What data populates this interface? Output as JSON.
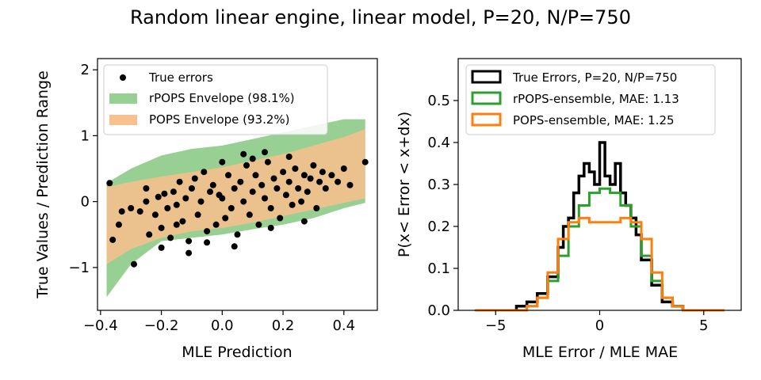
{
  "figure": {
    "suptitle": "Random linear engine, linear model, P=20, N/P=750"
  },
  "chart_data": [
    {
      "type": "scatter",
      "xlabel": "MLE Prediction",
      "ylabel": "True Values / Prediction Range",
      "xlim": [
        -0.41,
        0.51
      ],
      "ylim": [
        -1.65,
        2.17
      ],
      "xticks": [
        -0.4,
        -0.2,
        0.0,
        0.2,
        0.4
      ],
      "xtick_labels": [
        "−0.4",
        "−0.2",
        "0.0",
        "0.2",
        "0.4"
      ],
      "yticks": [
        -1,
        0,
        1,
        2
      ],
      "ytick_labels": [
        "−1",
        "0",
        "1",
        "2"
      ],
      "grid": false,
      "legend_position": "upper-left",
      "legend": [
        {
          "label": "True errors",
          "kind": "marker",
          "color": "#000000"
        },
        {
          "label": "rPOPS Envelope (98.1%)",
          "kind": "patch",
          "color": "#98d093"
        },
        {
          "label": "POPS Envelope (93.2%)",
          "kind": "patch",
          "color": "#f9bf8c"
        }
      ],
      "envelopes": [
        {
          "name": "rPOPS Envelope (98.1%)",
          "color": "#98d093",
          "x": [
            -0.38,
            -0.3,
            -0.2,
            -0.1,
            0.0,
            0.1,
            0.2,
            0.3,
            0.4,
            0.47
          ],
          "upper": [
            0.28,
            0.5,
            0.7,
            0.8,
            0.85,
            0.95,
            1.05,
            1.15,
            1.25,
            1.25
          ],
          "lower": [
            -1.45,
            -0.95,
            -0.6,
            -0.55,
            -0.5,
            -0.42,
            -0.35,
            -0.25,
            -0.1,
            -0.02
          ]
        },
        {
          "name": "POPS Envelope (93.2%)",
          "color": "#f9bf8c",
          "x": [
            -0.38,
            -0.3,
            -0.2,
            -0.1,
            0.0,
            0.1,
            0.2,
            0.3,
            0.4,
            0.47
          ],
          "upper": [
            0.22,
            0.3,
            0.38,
            0.45,
            0.52,
            0.62,
            0.72,
            0.85,
            0.98,
            1.1
          ],
          "lower": [
            -0.95,
            -0.72,
            -0.55,
            -0.45,
            -0.4,
            -0.32,
            -0.22,
            -0.12,
            -0.02,
            0.05
          ]
        }
      ],
      "points": [
        [
          -0.37,
          0.28
        ],
        [
          -0.36,
          -0.58
        ],
        [
          -0.34,
          -0.35
        ],
        [
          -0.33,
          -0.15
        ],
        [
          -0.3,
          -0.1
        ],
        [
          -0.29,
          -0.95
        ],
        [
          -0.27,
          -0.15
        ],
        [
          -0.25,
          0.0
        ],
        [
          -0.24,
          -0.5
        ],
        [
          -0.22,
          -0.2
        ],
        [
          -0.21,
          0.07
        ],
        [
          -0.2,
          -0.4
        ],
        [
          -0.19,
          0.12
        ],
        [
          -0.18,
          -0.1
        ],
        [
          -0.17,
          -0.55
        ],
        [
          -0.16,
          0.15
        ],
        [
          -0.15,
          -0.05
        ],
        [
          -0.14,
          0.3
        ],
        [
          -0.13,
          -0.3
        ],
        [
          -0.12,
          0.05
        ],
        [
          -0.11,
          -0.6
        ],
        [
          -0.1,
          0.2
        ],
        [
          -0.09,
          0.35
        ],
        [
          -0.08,
          -0.2
        ],
        [
          -0.07,
          0.0
        ],
        [
          -0.06,
          0.45
        ],
        [
          -0.05,
          -0.45
        ],
        [
          -0.04,
          0.15
        ],
        [
          -0.03,
          0.25
        ],
        [
          -0.02,
          -0.35
        ],
        [
          -0.01,
          0.1
        ],
        [
          0.0,
          0.05
        ],
        [
          0.01,
          -0.25
        ],
        [
          0.02,
          0.4
        ],
        [
          0.03,
          -0.1
        ],
        [
          0.04,
          0.2
        ],
        [
          0.05,
          -0.5
        ],
        [
          0.06,
          0.3
        ],
        [
          0.07,
          0.0
        ],
        [
          0.08,
          0.55
        ],
        [
          0.09,
          -0.2
        ],
        [
          0.1,
          0.15
        ],
        [
          0.11,
          0.4
        ],
        [
          0.12,
          -0.35
        ],
        [
          0.13,
          0.25
        ],
        [
          0.14,
          0.05
        ],
        [
          0.15,
          0.6
        ],
        [
          0.16,
          -0.1
        ],
        [
          0.17,
          0.35
        ],
        [
          0.18,
          0.2
        ],
        [
          0.19,
          -0.25
        ],
        [
          0.2,
          0.45
        ],
        [
          0.21,
          0.1
        ],
        [
          0.22,
          0.3
        ],
        [
          0.23,
          -0.05
        ],
        [
          0.24,
          0.5
        ],
        [
          0.25,
          0.2
        ],
        [
          0.26,
          0.0
        ],
        [
          0.27,
          0.4
        ],
        [
          0.28,
          0.15
        ],
        [
          0.29,
          0.35
        ],
        [
          0.3,
          0.55
        ],
        [
          0.31,
          -0.1
        ],
        [
          0.32,
          0.3
        ],
        [
          0.33,
          0.45
        ],
        [
          0.34,
          0.2
        ],
        [
          0.36,
          0.4
        ],
        [
          0.38,
          0.3
        ],
        [
          0.4,
          0.5
        ],
        [
          0.42,
          0.25
        ],
        [
          0.47,
          0.6
        ],
        [
          -0.15,
          -0.35
        ],
        [
          -0.05,
          -0.62
        ],
        [
          0.04,
          -0.68
        ],
        [
          -0.11,
          -0.78
        ],
        [
          0.1,
          0.65
        ],
        [
          0.07,
          0.72
        ],
        [
          0.14,
          0.75
        ],
        [
          0.22,
          0.68
        ],
        [
          -0.2,
          -0.7
        ],
        [
          0.0,
          0.6
        ],
        [
          -0.25,
          0.2
        ],
        [
          0.16,
          -0.4
        ],
        [
          0.27,
          -0.3
        ]
      ]
    },
    {
      "type": "step-histogram",
      "xlabel": "MLE Error / MLE MAE",
      "ylabel": "P(x< Error < x+dx)",
      "xlim": [
        -6.8,
        6.8
      ],
      "ylim": [
        0.0,
        0.6
      ],
      "xticks": [
        -5,
        0,
        5
      ],
      "xtick_labels": [
        "−5",
        "0",
        "5"
      ],
      "yticks": [
        0.0,
        0.1,
        0.2,
        0.3,
        0.4,
        0.5
      ],
      "ytick_labels": [
        "0.0",
        "0.1",
        "0.2",
        "0.3",
        "0.4",
        "0.5"
      ],
      "grid": false,
      "legend_position": "upper-left",
      "series": [
        {
          "name": "True Errors, P=20, N/P=750",
          "color": "#000000",
          "edges": [
            -4,
            -3.5,
            -3,
            -2.5,
            -2,
            -1.75,
            -1.5,
            -1.25,
            -1,
            -0.75,
            -0.5,
            -0.25,
            0,
            0.25,
            0.5,
            0.75,
            1,
            1.25,
            1.5,
            1.75,
            2,
            2.5,
            3,
            3.5,
            4
          ],
          "values": [
            0.01,
            0.02,
            0.04,
            0.08,
            0.15,
            0.2,
            0.22,
            0.28,
            0.32,
            0.35,
            0.33,
            0.3,
            0.4,
            0.32,
            0.3,
            0.35,
            0.28,
            0.25,
            0.22,
            0.18,
            0.12,
            0.06,
            0.02,
            0.01
          ]
        },
        {
          "name": "rPOPS-ensemble, MAE: 1.13",
          "color": "#2ca02c",
          "x": [
            -6,
            -4,
            -3.5,
            -3,
            -2.5,
            -2,
            -1.5,
            -1,
            -0.5,
            0,
            0.5,
            1,
            1.5,
            2,
            2.5,
            3,
            3.5,
            4,
            6
          ],
          "y": [
            0.0,
            0.0,
            0.01,
            0.03,
            0.07,
            0.13,
            0.2,
            0.25,
            0.28,
            0.29,
            0.28,
            0.25,
            0.2,
            0.13,
            0.07,
            0.03,
            0.01,
            0.0,
            0.0
          ]
        },
        {
          "name": "POPS-ensemble, MAE: 1.25",
          "color": "#ff7f0e",
          "x": [
            -6,
            -4,
            -3.5,
            -3,
            -2.5,
            -2,
            -1.5,
            -1,
            -0.5,
            0,
            0.5,
            1,
            1.5,
            2,
            2.5,
            3,
            3.5,
            4,
            6
          ],
          "y": [
            0.0,
            0.0,
            0.01,
            0.03,
            0.09,
            0.17,
            0.21,
            0.22,
            0.21,
            0.21,
            0.21,
            0.22,
            0.21,
            0.17,
            0.09,
            0.03,
            0.01,
            0.0,
            0.0
          ]
        }
      ]
    }
  ]
}
